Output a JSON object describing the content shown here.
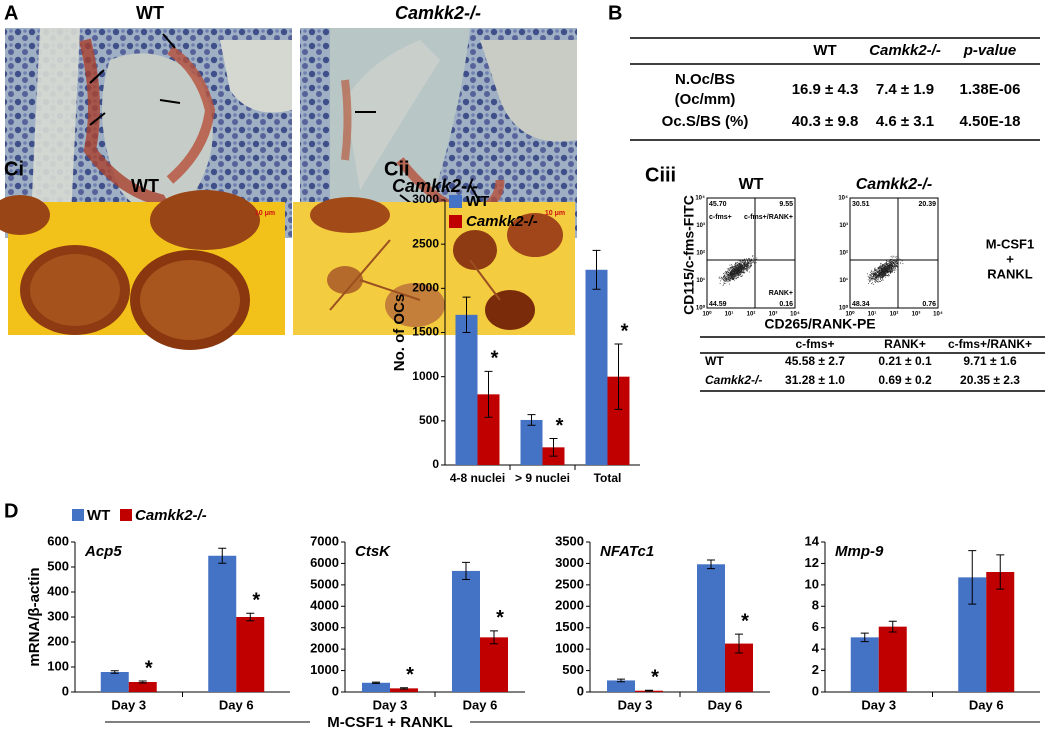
{
  "panel_a": {
    "label": "A",
    "captions": [
      "WT",
      "Camkk2-/-"
    ],
    "scale_bars": [
      "10 μm",
      "10 μm"
    ]
  },
  "table_b": {
    "label": "B",
    "header": [
      "WT",
      "Camkk2-/-",
      "p-value"
    ],
    "rows": [
      {
        "name": [
          "N.Oc/BS",
          "(Oc/mm)"
        ],
        "cells": [
          "16.9 ± 4.3",
          "7.4 ± 1.9",
          "1.38E-06"
        ]
      },
      {
        "name": [
          "Oc.S/BS (%)"
        ],
        "cells": [
          "40.3 ± 9.8",
          "4.6 ± 3.1",
          "4.50E-18"
        ]
      }
    ]
  },
  "panel_ci": {
    "label": "Ci",
    "captions": [
      "WT",
      "Camkk2-/-"
    ]
  },
  "panel_cii": {
    "label": "Cii"
  },
  "panel_ciii": {
    "label": "Ciii",
    "titles": [
      "WT",
      "Camkk2-/-"
    ],
    "ylabel": "CD115/c-fms-FITC",
    "xlabel": "CD265/RANK-PE",
    "condition": [
      "M-CSF1",
      "+",
      "RANKL"
    ],
    "quadrant_names": [
      "c-fms+",
      "c-fms+/RANK+",
      "RANK+"
    ],
    "axis_ticks": [
      "10⁰",
      "10¹",
      "10²",
      "10³",
      "10⁴"
    ],
    "plots": [
      {
        "quadrants": [
          "45.70",
          "9.55",
          "44.59",
          "0.16"
        ]
      },
      {
        "quadrants": [
          "30.51",
          "20.39",
          "48.34",
          "0.76"
        ]
      }
    ],
    "table": {
      "header": [
        "c-fms+",
        "RANK+",
        "c-fms+/RANK+"
      ],
      "rows": [
        {
          "name": "WT",
          "cells": [
            "45.58 ± 2.7",
            "0.21 ± 0.1",
            "9.71 ± 1.6"
          ]
        },
        {
          "name": "Camkk2-/-",
          "cells": [
            "31.28 ± 1.0",
            "0.69 ± 0.2",
            "20.35 ± 2.3"
          ]
        }
      ]
    }
  },
  "panel_d": {
    "label": "D",
    "legend": [
      {
        "name": "WT",
        "color": "#4472c4"
      },
      {
        "name": "Camkk2-/-",
        "color": "#c00000"
      }
    ],
    "footer": "M-CSF1 + RANKL"
  },
  "chart_data": [
    {
      "type": "bar",
      "ylabel": "No. of OCs",
      "categories": [
        "4-8 nuclei",
        "> 9 nuclei",
        "Total"
      ],
      "series": [
        {
          "name": "WT",
          "color": "#4472c4",
          "values": [
            1700,
            510,
            2210
          ],
          "errors": [
            200,
            60,
            220
          ]
        },
        {
          "name": "Camkk2-/-",
          "color": "#c00000",
          "values": [
            800,
            200,
            1000
          ],
          "errors": [
            260,
            100,
            370
          ],
          "significance": [
            "*",
            "*",
            "*"
          ]
        }
      ],
      "ylim": [
        0,
        3000
      ],
      "yticks": [
        0,
        500,
        1000,
        1500,
        2000,
        2500,
        3000
      ]
    },
    {
      "type": "bar",
      "title": "Acp5",
      "ylabel": "mRNA/β-actin",
      "categories": [
        "Day 3",
        "Day 6"
      ],
      "series": [
        {
          "color": "#4472c4",
          "values": [
            80,
            545
          ],
          "errors": [
            5,
            30
          ]
        },
        {
          "color": "#c00000",
          "values": [
            40,
            300
          ],
          "errors": [
            4,
            15
          ],
          "significance": [
            "*",
            "*"
          ]
        }
      ],
      "ylim": [
        0,
        600
      ],
      "yticks": [
        0,
        100,
        200,
        300,
        400,
        500,
        600
      ]
    },
    {
      "type": "bar",
      "title": "CtsK",
      "categories": [
        "Day 3",
        "Day 6"
      ],
      "series": [
        {
          "color": "#4472c4",
          "values": [
            430,
            5650
          ],
          "errors": [
            30,
            400
          ]
        },
        {
          "color": "#c00000",
          "values": [
            170,
            2550
          ],
          "errors": [
            30,
            300
          ],
          "significance": [
            "*",
            "*"
          ]
        }
      ],
      "ylim": [
        0,
        7000
      ],
      "yticks": [
        0,
        1000,
        2000,
        3000,
        4000,
        5000,
        6000,
        7000
      ]
    },
    {
      "type": "bar",
      "title": "NFATc1",
      "categories": [
        "Day 3",
        "Day 6"
      ],
      "series": [
        {
          "color": "#4472c4",
          "values": [
            270,
            2980
          ],
          "errors": [
            30,
            100
          ]
        },
        {
          "color": "#c00000",
          "values": [
            30,
            1130
          ],
          "errors": [
            10,
            220
          ],
          "significance": [
            "*",
            "*"
          ]
        }
      ],
      "ylim": [
        0,
        3500
      ],
      "yticks": [
        0,
        500,
        1000,
        1500,
        2000,
        2500,
        3000,
        3500
      ]
    },
    {
      "type": "bar",
      "title": "Mmp-9",
      "categories": [
        "Day 3",
        "Day 6"
      ],
      "series": [
        {
          "color": "#4472c4",
          "values": [
            5.1,
            10.7
          ],
          "errors": [
            0.4,
            2.5
          ]
        },
        {
          "color": "#c00000",
          "values": [
            6.1,
            11.2
          ],
          "errors": [
            0.5,
            1.6
          ]
        }
      ],
      "ylim": [
        0,
        14
      ],
      "yticks": [
        0,
        2,
        4,
        6,
        8,
        10,
        12,
        14
      ]
    }
  ]
}
